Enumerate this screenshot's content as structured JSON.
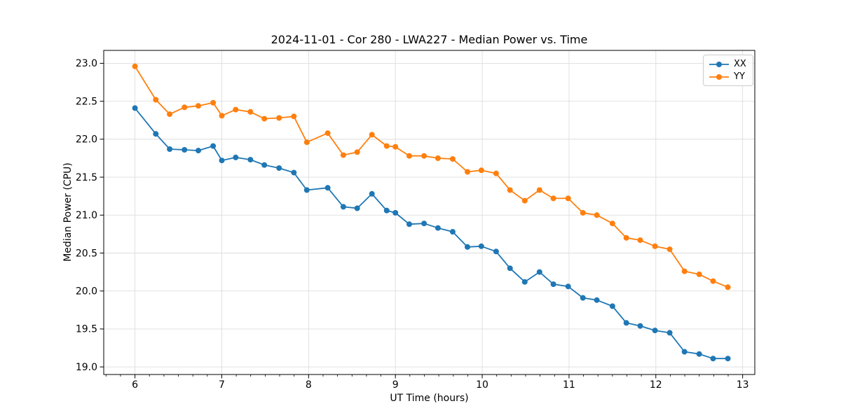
{
  "chart_data": {
    "type": "line",
    "title": "2024-11-01 - Cor 280 - LWA227 - Median Power vs. Time",
    "xlabel": "UT Time (hours)",
    "ylabel": "Median Power (CPU)",
    "xlim": [
      5.64,
      13.14
    ],
    "ylim": [
      18.9,
      23.17
    ],
    "grid": "major",
    "legend_position": "upper right",
    "x_major_ticks": [
      6,
      7,
      8,
      9,
      10,
      11,
      12,
      13
    ],
    "x_tick_labels": [
      "6",
      "7",
      "8",
      "9",
      "10",
      "11",
      "12",
      "13"
    ],
    "x_minor_subdivisions": 6,
    "y_major_ticks": [
      19.0,
      19.5,
      20.0,
      20.5,
      21.0,
      21.5,
      22.0,
      22.5,
      23.0
    ],
    "y_tick_labels": [
      "19.0",
      "19.5",
      "20.0",
      "20.5",
      "21.0",
      "21.5",
      "22.0",
      "22.5",
      "23.0"
    ],
    "x": [
      6.0,
      6.24,
      6.4,
      6.57,
      6.73,
      6.9,
      7.0,
      7.16,
      7.33,
      7.49,
      7.66,
      7.83,
      7.98,
      8.22,
      8.4,
      8.56,
      8.73,
      8.9,
      9.0,
      9.16,
      9.33,
      9.49,
      9.66,
      9.83,
      9.99,
      10.16,
      10.32,
      10.49,
      10.66,
      10.82,
      10.99,
      11.16,
      11.32,
      11.5,
      11.66,
      11.82,
      11.99,
      12.16,
      12.33,
      12.5,
      12.66,
      12.83
    ],
    "series": [
      {
        "name": "XX",
        "color": "#1f77b4",
        "values": [
          22.41,
          22.07,
          21.87,
          21.86,
          21.85,
          21.91,
          21.72,
          21.76,
          21.73,
          21.66,
          21.62,
          21.56,
          21.33,
          21.36,
          21.11,
          21.09,
          21.28,
          21.06,
          21.03,
          20.88,
          20.89,
          20.83,
          20.78,
          20.58,
          20.59,
          20.52,
          20.3,
          20.12,
          20.25,
          20.09,
          20.06,
          19.91,
          19.88,
          19.8,
          19.58,
          19.54,
          19.48,
          19.45,
          19.2,
          19.17,
          19.11,
          19.11
        ]
      },
      {
        "name": "YY",
        "color": "#ff7f0e",
        "values": [
          22.96,
          22.52,
          22.33,
          22.42,
          22.44,
          22.48,
          22.31,
          22.39,
          22.36,
          22.27,
          22.28,
          22.3,
          21.96,
          22.08,
          21.79,
          21.83,
          22.06,
          21.91,
          21.9,
          21.78,
          21.78,
          21.75,
          21.74,
          21.57,
          21.59,
          21.55,
          21.33,
          21.19,
          21.33,
          21.22,
          21.22,
          21.03,
          21.0,
          20.89,
          20.7,
          20.67,
          20.59,
          20.55,
          20.26,
          20.22,
          20.13,
          20.05
        ]
      }
    ]
  },
  "colors": {
    "background": "#ffffff",
    "grid": "#dddddd",
    "spine": "#000000",
    "tick": "#000000",
    "series_xx": "#1f77b4",
    "series_yy": "#ff7f0e"
  }
}
